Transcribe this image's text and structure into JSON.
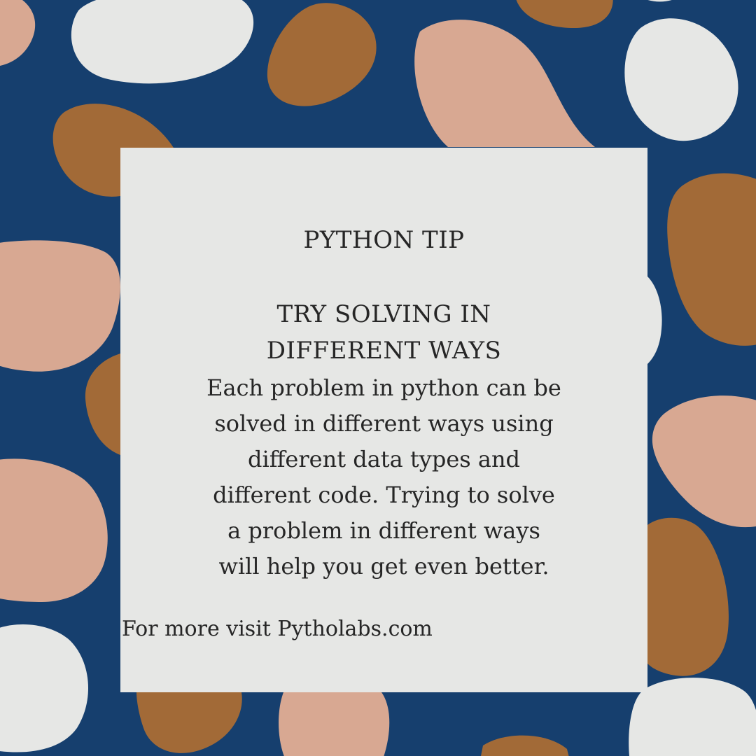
{
  "card": {
    "label": "PYTHON TIP",
    "title_lines": [
      "TRY SOLVING IN",
      "DIFFERENT WAYS"
    ],
    "body_lines": [
      "Each problem in python can be",
      "solved in different ways using",
      "different data types and",
      "different code. Trying to solve",
      "a problem in different ways",
      "will help you get even better."
    ],
    "footer": "For more visit Pytholabs.com"
  },
  "colors": {
    "background": "#163f6e",
    "blob_pink": "#d8a892",
    "blob_brown": "#a26a37",
    "blob_white": "#e6e7e5",
    "card": "#e6e7e5",
    "text": "#262626"
  }
}
